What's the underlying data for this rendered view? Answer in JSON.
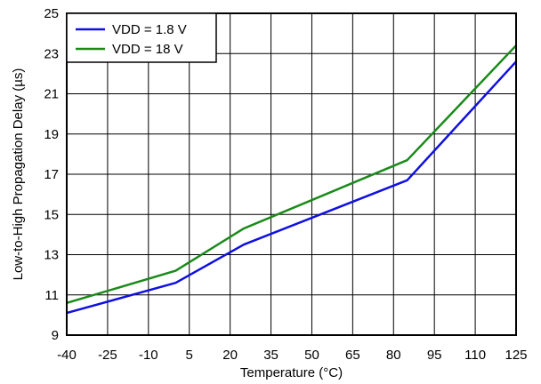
{
  "chart_data": {
    "type": "line",
    "title": "",
    "xlabel": "Temperature (°C)",
    "ylabel": "Low-to-High Propagation Delay (µs)",
    "xlim": [
      -40,
      125
    ],
    "ylim": [
      9,
      25
    ],
    "x_ticks": [
      -40,
      -25,
      -10,
      5,
      20,
      35,
      50,
      65,
      80,
      95,
      110,
      125
    ],
    "y_ticks": [
      9,
      11,
      13,
      15,
      17,
      19,
      21,
      23,
      25
    ],
    "grid": true,
    "legend_position": "top-left",
    "series": [
      {
        "name": "VDD = 1.8 V",
        "color": "#1010e0",
        "x": [
          -40,
          0,
          25,
          85,
          125
        ],
        "y": [
          10.1,
          11.6,
          13.5,
          16.7,
          22.6
        ]
      },
      {
        "name": "VDD = 18 V",
        "color": "#1a8a1a",
        "x": [
          -40,
          0,
          25,
          85,
          125
        ],
        "y": [
          10.6,
          12.2,
          14.3,
          17.7,
          23.4
        ]
      }
    ]
  }
}
